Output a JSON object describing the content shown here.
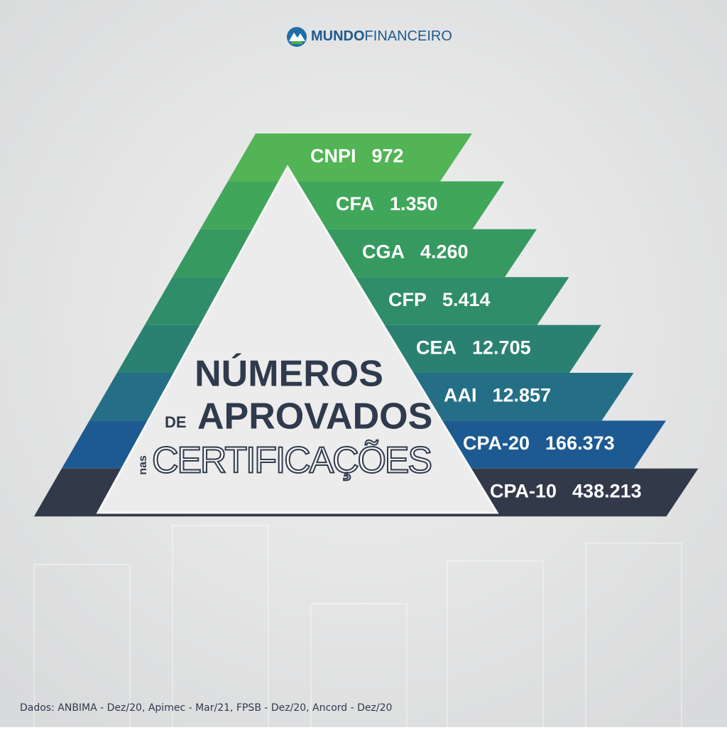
{
  "brand": {
    "bold": "MUNDO",
    "light": "FINANCEIRO"
  },
  "title": {
    "line1": "NÚMEROS",
    "prefix2": "DE",
    "line2": "APROVADOS",
    "prefix3": "nas",
    "line3": "CERTIFICAÇÕES"
  },
  "tiers": [
    {
      "name": "CNPI",
      "value": "972"
    },
    {
      "name": "CFA",
      "value": "1.350"
    },
    {
      "name": "CGA",
      "value": "4.260"
    },
    {
      "name": "CFP",
      "value": "5.414"
    },
    {
      "name": "CEA",
      "value": "12.705"
    },
    {
      "name": "AAI",
      "value": "12.857"
    },
    {
      "name": "CPA-20",
      "value": "166.373"
    },
    {
      "name": "CPA-10",
      "value": "438.213"
    }
  ],
  "source": "Dados: ANBIMA - Dez/20, Apimec - Mar/21, FPSB - Dez/20, Ancord - Dez/20"
}
